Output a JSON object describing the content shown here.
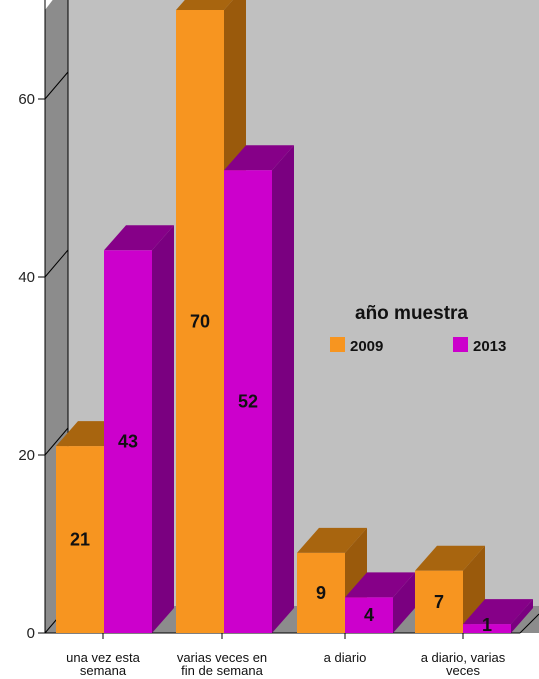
{
  "chart_data": {
    "type": "bar",
    "title": "",
    "xlabel": "",
    "ylabel": "",
    "ylim": [
      0,
      70
    ],
    "yticks": [
      0,
      20,
      40,
      60
    ],
    "grid": false,
    "legend_position": "right",
    "legend_title": "año muestra",
    "categories": [
      [
        "una vez esta",
        "semana"
      ],
      [
        "varias veces en",
        "fin de semana"
      ],
      [
        "a diario"
      ],
      [
        "a diario, varias",
        "veces"
      ]
    ],
    "series": [
      {
        "name": "2009",
        "values": [
          21,
          70,
          9,
          7
        ]
      },
      {
        "name": "2013",
        "values": [
          43,
          52,
          4,
          1
        ]
      }
    ],
    "colors": {
      "series": [
        "#f79520",
        "#cc00cc"
      ],
      "series_side": [
        "#9a5a0c",
        "#7a0080"
      ],
      "series_top": [
        "#a8650f",
        "#860088"
      ],
      "wall": "#c0c0c0",
      "floor": "#8c8c8c"
    }
  }
}
